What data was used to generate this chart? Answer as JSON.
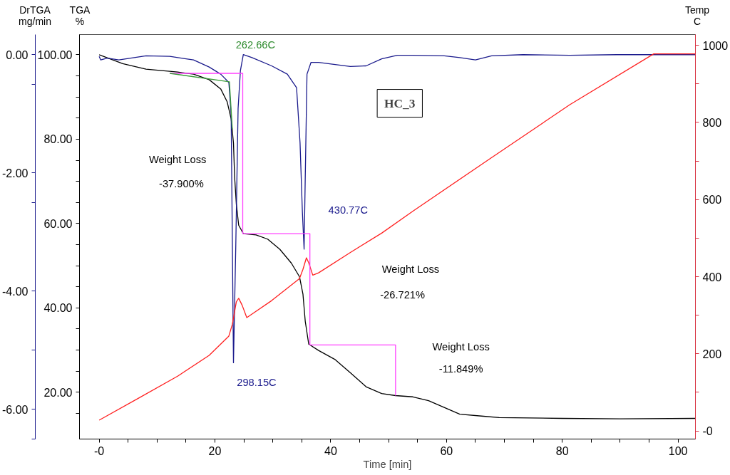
{
  "chart_data": {
    "type": "line",
    "xlabel": "Time [min]",
    "ylabel": "TGA\n%",
    "y2label": "Temp\nC",
    "y3label": "DrTGA\nmg/min",
    "xlim": [
      -3.4,
      103
    ],
    "ylim": [
      8.9,
      104.8
    ],
    "y2lim": [
      -21,
      1028
    ],
    "y3lim": [
      -6.5,
      0.34
    ],
    "xticks": [
      {
        "value": 0,
        "label": "-0"
      },
      20,
      40,
      60,
      80,
      100,
      {
        "value": 5,
        "label": null
      },
      {
        "value": 10,
        "label": null
      },
      {
        "value": 15,
        "label": null
      },
      {
        "value": 25,
        "label": null
      },
      {
        "value": 30,
        "label": null
      },
      {
        "value": 35,
        "label": null
      },
      {
        "value": 45,
        "label": null
      },
      {
        "value": 50,
        "label": null
      },
      {
        "value": 55,
        "label": null
      },
      {
        "value": 65,
        "label": null
      },
      {
        "value": 70,
        "label": null
      },
      {
        "value": 75,
        "label": null
      },
      {
        "value": 85,
        "label": null
      },
      {
        "value": 90,
        "label": null
      },
      {
        "value": 95,
        "label": null
      }
    ],
    "yticks": [
      {
        "value": 20,
        "label": "20.00"
      },
      {
        "value": 40,
        "label": "40.00"
      },
      {
        "value": 60,
        "label": "60.00"
      },
      {
        "value": 80,
        "label": "80.00"
      },
      {
        "value": 100,
        "label": "100.00"
      },
      {
        "value": 15,
        "label": null
      },
      {
        "value": 25,
        "label": null
      },
      {
        "value": 30,
        "label": null
      },
      {
        "value": 35,
        "label": null
      },
      {
        "value": 45,
        "label": null
      },
      {
        "value": 50,
        "label": null
      },
      {
        "value": 55,
        "label": null
      },
      {
        "value": 65,
        "label": null
      },
      {
        "value": 70,
        "label": null
      },
      {
        "value": 75,
        "label": null
      },
      {
        "value": 85,
        "label": null
      },
      {
        "value": 90,
        "label": null
      },
      {
        "value": 95,
        "label": null
      }
    ],
    "y2ticks": [
      {
        "value": 0,
        "label": "-0"
      },
      200,
      400,
      600,
      800,
      1000,
      {
        "value": 100,
        "label": null
      },
      {
        "value": 300,
        "label": null
      },
      {
        "value": 500,
        "label": null
      },
      {
        "value": 700,
        "label": null
      },
      {
        "value": 900,
        "label": null
      }
    ],
    "y3ticks": [
      {
        "value": 0,
        "label": "0.00"
      },
      {
        "value": -2,
        "label": "-2.00"
      },
      {
        "value": -4,
        "label": "-4.00"
      },
      {
        "value": -6,
        "label": "-6.00"
      },
      {
        "value": -0.5,
        "label": null
      },
      {
        "value": -2.5,
        "label": null
      },
      {
        "value": -5,
        "label": null
      },
      {
        "value": -6.5,
        "label": null
      }
    ],
    "grid": false,
    "marker": "none",
    "line_style": "solid",
    "series": [
      {
        "color": "#000000",
        "x": [
          0,
          4.07,
          8.1,
          13.55,
          16.3,
          19.0,
          21.0,
          22.1,
          22.8,
          23.2,
          23.4,
          23.7,
          24.1,
          24.9,
          27.1,
          29.1,
          31.2,
          33.2,
          34.6,
          35.2,
          35.6,
          36.2,
          37.9,
          40.7,
          43.4,
          46.1,
          48.8,
          51.2,
          54.2,
          56.9,
          59.6,
          62.3,
          66.4,
          69.1,
          80,
          90,
          103
        ],
        "values": [
          100,
          97.9,
          96.6,
          95.9,
          95.4,
          94.1,
          91.9,
          88.9,
          84.8,
          79.1,
          71.0,
          64.5,
          59.6,
          57.6,
          57.3,
          56.3,
          53.9,
          50.6,
          47.4,
          43.3,
          36.8,
          31.4,
          29.9,
          27.8,
          24.6,
          21.3,
          19.7,
          19.2,
          18.9,
          18.0,
          16.4,
          14.8,
          14.3,
          14.0,
          13.8,
          13.7,
          13.8
        ]
      },
      {
        "color": "#1a1a8c",
        "axis": "y3",
        "x": [
          0,
          0.27,
          1.4,
          3.4,
          8.1,
          12.2,
          16.3,
          19.0,
          21.0,
          22.4,
          22.8,
          23.2,
          23.6,
          24.0,
          24.4,
          24.9,
          26.4,
          29.8,
          32.5,
          34.1,
          34.7,
          35.1,
          35.4,
          35.6,
          35.9,
          36.6,
          37.9,
          43.4,
          46.1,
          48.8,
          51.5,
          54.2,
          59.6,
          62.3,
          65.0,
          67.8,
          73.2,
          81.3,
          89.4,
          103
        ],
        "values": [
          -0.03,
          -0.09,
          -0.06,
          -0.09,
          -0.02,
          -0.03,
          -0.09,
          -0.21,
          -0.33,
          -0.47,
          -1.02,
          -5.21,
          -3.23,
          -0.91,
          -0.27,
          0.0,
          -0.05,
          -0.19,
          -0.33,
          -0.56,
          -1.49,
          -2.65,
          -3.29,
          -2.07,
          -0.33,
          -0.13,
          -0.13,
          -0.2,
          -0.19,
          -0.07,
          -0.01,
          -0.01,
          -0.02,
          -0.05,
          -0.09,
          -0.02,
          0.0,
          -0.01,
          0.0,
          0.0
        ]
      },
      {
        "color": "#ff2020",
        "axis": "y2",
        "x": [
          0,
          6.8,
          13.55,
          19.0,
          22.4,
          23.0,
          23.7,
          24.1,
          24.7,
          25.5,
          26.4,
          29.8,
          34.6,
          35.2,
          35.8,
          36.2,
          36.9,
          37.9,
          43.4,
          48.8,
          54.2,
          67.8,
          81.3,
          95.8,
          103
        ],
        "values": [
          28,
          85,
          142,
          196,
          246,
          276,
          335,
          344,
          326,
          294,
          303,
          338,
          395,
          419,
          449,
          436,
          404,
          410,
          463,
          513,
          570,
          709,
          846,
          978,
          978
        ]
      },
      {
        "color": "#ff40ff",
        "x": [
          12.2,
          24.8,
          24.8,
          36.4,
          36.4,
          51.2,
          51.2
        ],
        "values": [
          95.6,
          95.6,
          57.6,
          57.6,
          31.2,
          31.2,
          19.2
        ]
      },
      {
        "color": "#3a9a3a",
        "x": [
          12.2,
          22.5,
          23.0
        ],
        "values": [
          95.6,
          93.6,
          82.4
        ]
      }
    ],
    "annotations": [
      "262.66C",
      "298.15C",
      "430.77C",
      "Weight Loss",
      "-37.900%",
      "Weight Loss",
      "-26.721%",
      "Weight Loss",
      "-11.849%",
      "HC_3"
    ]
  }
}
